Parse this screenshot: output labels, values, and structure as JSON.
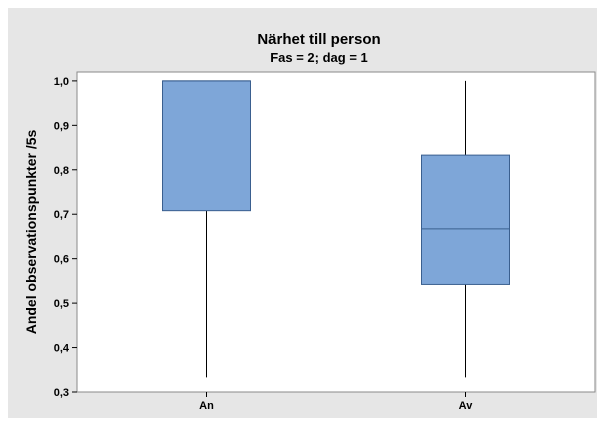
{
  "chart_data": {
    "type": "box",
    "title": "Närhet till person",
    "subtitle": "Fas = 2; dag = 1",
    "xlabel": "",
    "ylabel": "Andel observationspunkter /5s",
    "ylim": [
      0.3,
      1.02
    ],
    "yticks": [
      0.3,
      0.4,
      0.5,
      0.6,
      0.7,
      0.8,
      0.9,
      1.0
    ],
    "ytick_labels": [
      "0,3",
      "0,4",
      "0,5",
      "0,6",
      "0,7",
      "0,8",
      "0,9",
      "1,0"
    ],
    "categories": [
      "An",
      "Av"
    ],
    "boxes": [
      {
        "category": "An",
        "min": 0.333,
        "q1": 0.708,
        "median": 1.0,
        "q3": 1.0,
        "max": 1.0
      },
      {
        "category": "Av",
        "min": 0.333,
        "q1": 0.542,
        "median": 0.667,
        "q3": 0.833,
        "max": 1.0
      }
    ],
    "grid": false,
    "legend": "none",
    "colors": {
      "box_fill": "#7ea6d8",
      "box_stroke": "#3a5f8f",
      "whisker": "#000000",
      "outer_background": "#e6e6e6",
      "plot_background": "#ffffff"
    }
  }
}
